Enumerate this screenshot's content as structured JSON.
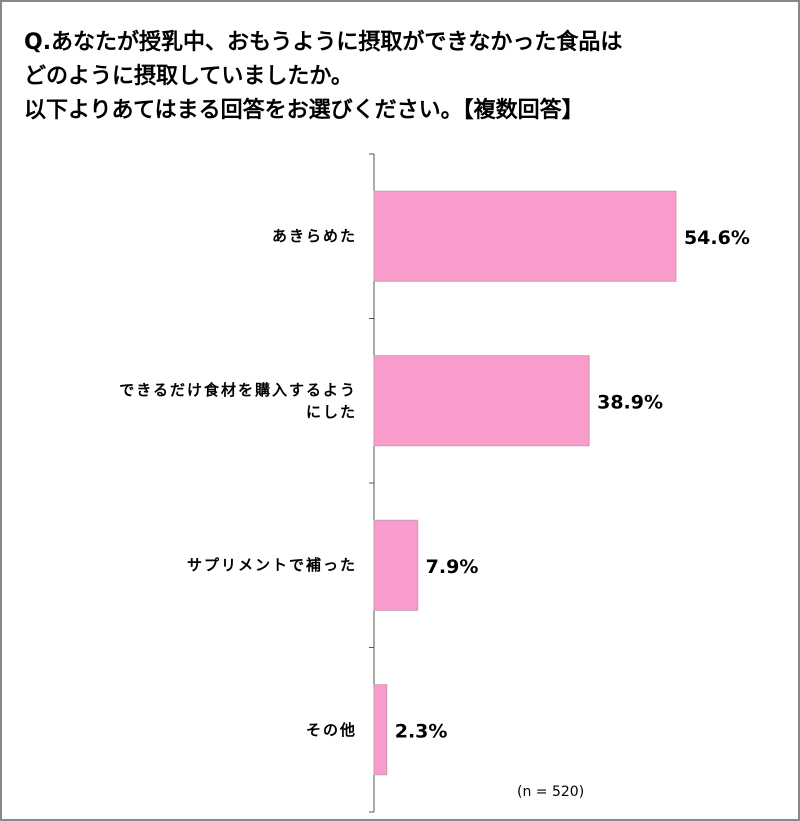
{
  "chart_data": {
    "type": "bar",
    "orientation": "horizontal",
    "title_lines": [
      "Q.あなたが授乳中、おもうように摂取ができなかった食品は",
      "どのように摂取していましたか。",
      "以下よりあてはまる回答をお選びください。【複数回答】"
    ],
    "categories": [
      "あきらめた",
      "できるだけ食材を購入するようにした",
      "サプリメントで補った",
      "その他"
    ],
    "values": [
      54.6,
      38.9,
      7.9,
      2.3
    ],
    "value_labels": [
      "54.6%",
      "38.9%",
      "7.9%",
      "2.3%"
    ],
    "color": "#f99ccc",
    "annotation": "(n = 520)"
  }
}
